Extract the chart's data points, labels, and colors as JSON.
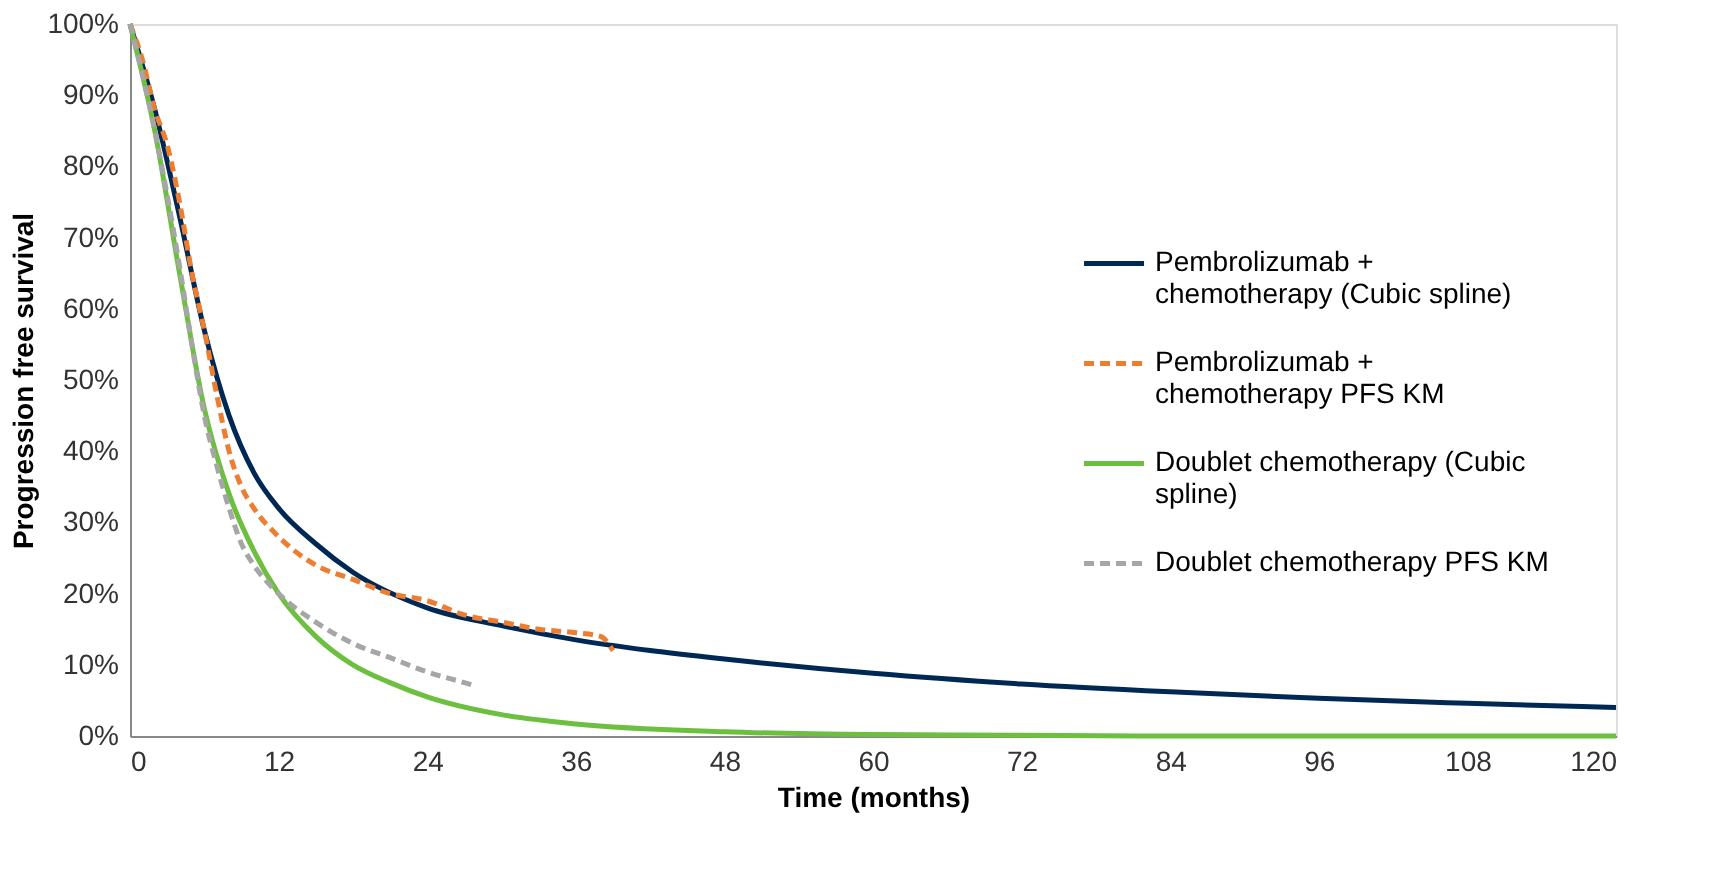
{
  "chart_data": {
    "type": "line",
    "xlabel": "Time (months)",
    "ylabel": "Progression free survival",
    "xlim": [
      0,
      120
    ],
    "xticks": [
      0,
      12,
      24,
      36,
      48,
      60,
      72,
      84,
      96,
      108,
      120
    ],
    "ylim": [
      0,
      100
    ],
    "yticks": [
      {
        "value": 0,
        "label": "0%"
      },
      {
        "value": 10,
        "label": "10%"
      },
      {
        "value": 20,
        "label": "20%"
      },
      {
        "value": 30,
        "label": "30%"
      },
      {
        "value": 40,
        "label": "40%"
      },
      {
        "value": 50,
        "label": "50%"
      },
      {
        "value": 60,
        "label": "60%"
      },
      {
        "value": 70,
        "label": "70%"
      },
      {
        "value": 80,
        "label": "80%"
      },
      {
        "value": 90,
        "label": "90%"
      },
      {
        "value": 100,
        "label": "100%"
      }
    ],
    "grid": false,
    "legend": "right",
    "marker": "none",
    "series": [
      {
        "name": "Pembrolizumab + chemotherapy (Cubic spline)",
        "color": "#002855",
        "line_style": "solid",
        "x": [
          0,
          2,
          4,
          6,
          8,
          10,
          12,
          15,
          18,
          24,
          30,
          36,
          42,
          48,
          60,
          72,
          84,
          96,
          108,
          120
        ],
        "values": [
          100,
          88,
          73,
          57,
          45,
          37,
          32,
          27,
          23,
          18,
          15.5,
          13.5,
          12,
          10.8,
          8.8,
          7.3,
          6.2,
          5.3,
          4.6,
          4
        ]
      },
      {
        "name": "Pembrolizumab + chemotherapy PFS KM",
        "color": "#ed7d31",
        "line_style": "dashed",
        "x": [
          0,
          1,
          2,
          3,
          4,
          5,
          6,
          7,
          8,
          9,
          10,
          12,
          15,
          18,
          21,
          24,
          27,
          30,
          33,
          36,
          38,
          39
        ],
        "values": [
          100,
          95,
          88,
          83,
          75,
          65,
          57,
          48,
          40,
          35,
          32,
          28,
          24,
          22,
          20,
          19,
          17,
          16,
          15,
          14.5,
          14,
          12
        ]
      },
      {
        "name": "Doublet chemotherapy (Cubic spline)",
        "color": "#6cbf3f",
        "line_style": "solid",
        "x": [
          0,
          2,
          4,
          6,
          8,
          10,
          12,
          15,
          18,
          21,
          24,
          30,
          36,
          48,
          60,
          72,
          84,
          96,
          108,
          120
        ],
        "values": [
          100,
          85,
          65,
          46,
          34,
          26,
          20,
          14,
          10,
          7.5,
          5.5,
          3,
          1.7,
          0.6,
          0.2,
          0.1,
          0,
          0,
          0,
          0
        ]
      },
      {
        "name": "Doublet chemotherapy PFS KM",
        "color": "#a6a6a6",
        "line_style": "dashed",
        "x": [
          0,
          2,
          4,
          5,
          6,
          7,
          8,
          9,
          10,
          12,
          15,
          18,
          21,
          24,
          27,
          28
        ],
        "values": [
          100,
          85,
          66,
          55,
          45,
          38,
          32,
          27,
          24,
          20,
          16,
          13,
          11,
          9,
          7.5,
          7
        ]
      }
    ]
  }
}
